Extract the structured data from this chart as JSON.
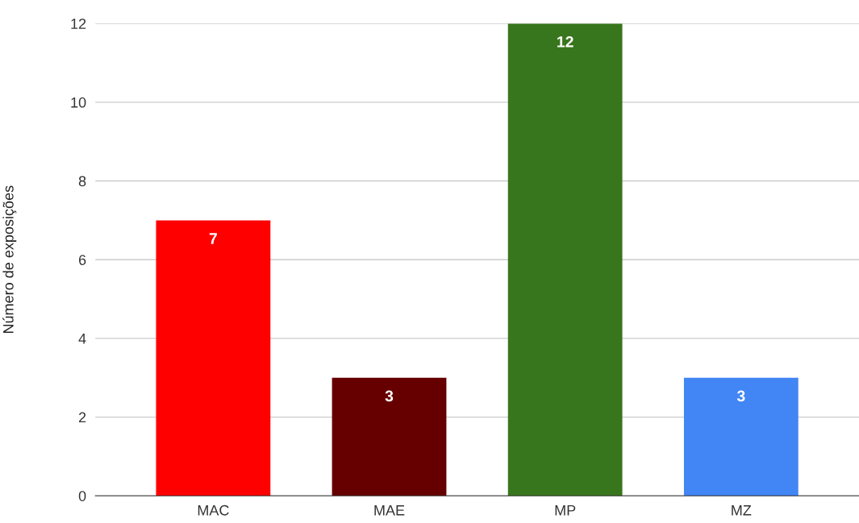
{
  "chart_data": {
    "type": "bar",
    "ylabel": "Número de exposições",
    "categories": [
      "MAC",
      "MAE",
      "MP",
      "MZ"
    ],
    "values": [
      7,
      3,
      12,
      3
    ],
    "colors": [
      "#ff0000",
      "#660000",
      "#38761d",
      "#4285f4"
    ],
    "ylim": [
      0,
      12
    ],
    "yticks": [
      0,
      2,
      4,
      6,
      8,
      10,
      12
    ],
    "grid": "y",
    "data_labels": true
  }
}
